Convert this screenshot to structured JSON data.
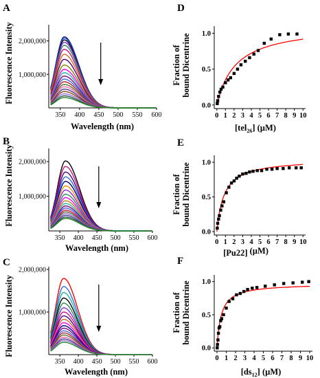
{
  "panels": {
    "A": "A",
    "B": "B",
    "C": "C",
    "D": "D",
    "E": "E",
    "F": "F"
  },
  "chart_data": [
    {
      "panel": "A",
      "type": "line",
      "xlabel": "Wavelength (nm)",
      "ylabel": "Fluorescence Intensity",
      "xlim": [
        320,
        600
      ],
      "ylim": [
        0,
        2400000
      ],
      "xticks": [
        "350",
        "400",
        "450",
        "500",
        "550",
        "600"
      ],
      "yticks": [
        "1,000,000",
        "2,000,000"
      ],
      "ytick_values": [
        1000000,
        2000000
      ],
      "peak_x": 360,
      "peak_values": [
        2120000,
        2080000,
        2030000,
        1960000,
        1870000,
        1750000,
        1600000,
        1450000,
        1280000,
        1150000,
        1050000,
        950000,
        860000,
        780000,
        700000,
        630000,
        560000,
        490000,
        420000,
        360000,
        310000
      ],
      "colors": [
        "#000080",
        "#2a6fd6",
        "#000000",
        "#8a2be2",
        "#2e8b57",
        "#c71585",
        "#d2691e",
        "#4b0082",
        "#808000",
        "#ff00ff",
        "#20b2aa",
        "#800080",
        "#4169e1",
        "#b22222",
        "#556b2f",
        "#ff69b4",
        "#483d8b",
        "#8b4513",
        "#9370db",
        "#2f4f4f",
        "#228b22"
      ],
      "annotation": "down-arrow"
    },
    {
      "panel": "B",
      "type": "line",
      "xlabel": "Wavelength (nm)",
      "ylabel": "Fluorescence Intensity",
      "xlim": [
        320,
        600
      ],
      "ylim": [
        0,
        2300000
      ],
      "xticks": [
        "350",
        "400",
        "450",
        "500",
        "550",
        "600"
      ],
      "yticks": [
        "1,000,000",
        "2,000,000"
      ],
      "ytick_values": [
        1000000,
        2000000
      ],
      "peak_x": 365,
      "peak_values": [
        2020000,
        1860000,
        1700000,
        1560000,
        1430000,
        1300000,
        1180000,
        1060000,
        960000,
        870000,
        790000,
        720000,
        660000,
        600000,
        550000,
        500000,
        450000,
        400000,
        360000
      ],
      "colors": [
        "#000000",
        "#c71585",
        "#4b0082",
        "#2a6fd6",
        "#000080",
        "#ff8c00",
        "#8a2be2",
        "#2e8b57",
        "#ff00ff",
        "#b8860b",
        "#20b2aa",
        "#800080",
        "#4169e1",
        "#dc143c",
        "#556b2f",
        "#9370db",
        "#483d8b",
        "#2f4f4f",
        "#228b22"
      ],
      "annotation": "down-arrow"
    },
    {
      "panel": "C",
      "type": "line",
      "xlabel": "Wavelength (nm)",
      "ylabel": "Fluorescence Intensity",
      "xlim": [
        320,
        600
      ],
      "ylim": [
        0,
        2000000
      ],
      "xticks": [
        "350",
        "400",
        "450",
        "500",
        "550",
        "600"
      ],
      "yticks": [
        "1,000,000",
        "2,000,000"
      ],
      "ytick_values": [
        1000000,
        2000000
      ],
      "peak_x": 360,
      "peak_values": [
        1790000,
        1600000,
        1460000,
        1330000,
        1210000,
        1100000,
        1000000,
        910000,
        830000,
        750000,
        680000,
        620000,
        560000,
        510000,
        460000,
        410000,
        370000,
        330000,
        290000
      ],
      "colors": [
        "#ff0000",
        "#2a6fd6",
        "#20b2aa",
        "#000000",
        "#2e8b57",
        "#8a2be2",
        "#c71585",
        "#4b0082",
        "#d2691e",
        "#ff00ff",
        "#000080",
        "#800080",
        "#4169e1",
        "#b22222",
        "#556b2f",
        "#ff69b4",
        "#483d8b",
        "#9370db",
        "#228b22"
      ],
      "annotation": "down-arrow"
    },
    {
      "panel": "D",
      "type": "scatter",
      "ylabel_line1": "Fraction of",
      "ylabel_line2": "bound Dicentrine",
      "xlabel_pre": "[tel",
      "xlabel_sub": "26",
      "xlabel_post": "] (µM)",
      "xlim": [
        -0.3,
        10.3
      ],
      "ylim": [
        -0.05,
        1.1
      ],
      "xticks": [
        "0",
        "1",
        "2",
        "3",
        "4",
        "5",
        "6",
        "7",
        "8",
        "9",
        "10"
      ],
      "yticks": [
        "0.0",
        "0.5",
        "1.0"
      ],
      "ytick_values": [
        0.0,
        0.5,
        1.0
      ],
      "points_x": [
        0.05,
        0.1,
        0.2,
        0.35,
        0.5,
        0.7,
        1.0,
        1.3,
        1.6,
        2.0,
        2.4,
        2.8,
        3.3,
        3.8,
        4.3,
        4.8,
        5.5,
        6.3,
        7.3,
        8.3,
        9.3
      ],
      "points_y": [
        0.02,
        0.06,
        0.12,
        0.18,
        0.22,
        0.25,
        0.31,
        0.35,
        0.38,
        0.44,
        0.5,
        0.56,
        0.61,
        0.66,
        0.71,
        0.76,
        0.86,
        0.92,
        0.98,
        0.99,
        0.99
      ],
      "fit": {
        "model": "hyperbolic",
        "bmax": 1.12,
        "kd": 2.2,
        "color": "#ff0000"
      }
    },
    {
      "panel": "E",
      "type": "scatter",
      "ylabel_line1": "Fraction of",
      "ylabel_line2": "bound Dicentrine",
      "xlabel_pre": "[Pu22]",
      "xlabel_sub": "",
      "xlabel_post": " (µM)",
      "xlim": [
        -0.3,
        10.3
      ],
      "ylim": [
        -0.05,
        1.1
      ],
      "xticks": [
        "0",
        "1",
        "2",
        "3",
        "4",
        "5",
        "6",
        "7",
        "8",
        "9",
        "10"
      ],
      "yticks": [
        "0.0",
        "0.5",
        "1.0"
      ],
      "ytick_values": [
        0.0,
        0.5,
        1.0
      ],
      "points_x": [
        0.05,
        0.1,
        0.2,
        0.3,
        0.45,
        0.6,
        0.8,
        1.1,
        1.4,
        1.7,
        2.0,
        2.3,
        2.6,
        3.0,
        3.4,
        3.8,
        4.2,
        4.7,
        5.2,
        5.8,
        6.4,
        7.0,
        7.7,
        8.4,
        9.2,
        9.8
      ],
      "points_y": [
        0.05,
        0.12,
        0.18,
        0.23,
        0.31,
        0.37,
        0.43,
        0.56,
        0.64,
        0.7,
        0.73,
        0.77,
        0.8,
        0.83,
        0.84,
        0.86,
        0.87,
        0.88,
        0.88,
        0.9,
        0.9,
        0.91,
        0.91,
        0.92,
        0.92,
        0.92
      ],
      "fit": {
        "model": "hyperbolic",
        "bmax": 1.05,
        "kd": 0.85,
        "color": "#ff0000"
      }
    },
    {
      "panel": "F",
      "type": "scatter",
      "ylabel_line1": "Fraction of",
      "ylabel_line2": "bound Dicentrine",
      "xlabel_pre": "[ds",
      "xlabel_sub": "12",
      "xlabel_post": "] (µM)",
      "xlim": [
        -0.3,
        10.3
      ],
      "ylim": [
        -0.05,
        1.1
      ],
      "xticks": [
        "0",
        "1",
        "2",
        "3",
        "4",
        "5",
        "6",
        "7",
        "8",
        "9",
        "10"
      ],
      "yticks": [
        "0.0",
        "0.5",
        "1.0"
      ],
      "ytick_values": [
        0.0,
        0.5,
        1.0
      ],
      "points_x": [
        0.02,
        0.05,
        0.1,
        0.15,
        0.22,
        0.3,
        0.4,
        0.5,
        0.7,
        1.0,
        1.3,
        1.7,
        2.1,
        2.5,
        2.9,
        3.3,
        3.8,
        4.3,
        5.2,
        6.2,
        7.2,
        8.2,
        9.2,
        9.9
      ],
      "points_y": [
        0.0,
        0.05,
        0.12,
        0.22,
        0.3,
        0.32,
        0.41,
        0.44,
        0.5,
        0.6,
        0.7,
        0.74,
        0.8,
        0.82,
        0.85,
        0.88,
        0.9,
        0.91,
        0.93,
        0.95,
        0.97,
        0.98,
        0.99,
        1.0
      ],
      "fit": {
        "model": "hyperbolic",
        "bmax": 0.97,
        "kd": 0.45,
        "color": "#ff0000"
      }
    }
  ]
}
